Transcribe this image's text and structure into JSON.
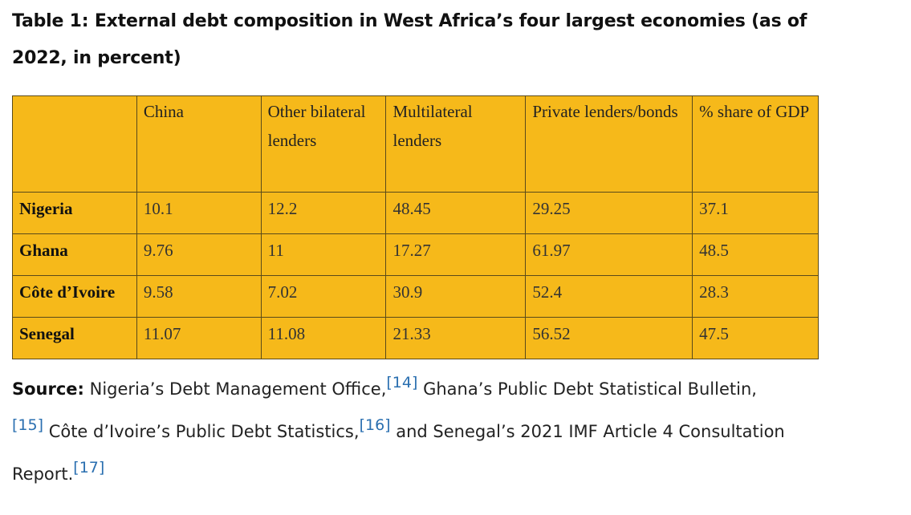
{
  "title": "Table 1: External debt composition in West Africa’s four largest economies (as of 2022, in percent)",
  "table": {
    "headers": [
      "",
      "China",
      "Other bilateral lenders",
      "Multilateral lenders",
      "Private lenders/bonds",
      "% share of GDP"
    ],
    "rows": [
      {
        "country": "Nigeria",
        "values": [
          "10.1",
          "12.2",
          "48.45",
          "29.25",
          "37.1"
        ]
      },
      {
        "country": "Ghana",
        "values": [
          "9.76",
          "11",
          "17.27",
          "61.97",
          "48.5"
        ]
      },
      {
        "country": "Côte d’Ivoire",
        "values": [
          "9.58",
          "7.02",
          "30.9",
          "52.4",
          "28.3"
        ]
      },
      {
        "country": "Senegal",
        "values": [
          "11.07",
          "11.08",
          "21.33",
          "56.52",
          "47.5"
        ]
      }
    ]
  },
  "source": {
    "label": "Source:",
    "part1": " Nigeria’s Debt Management Office,",
    "ref1": "[14]",
    "part2": " Ghana’s Public Debt Statistical Bulletin,",
    "ref2": "[15]",
    "part3": " Côte d’Ivoire’s Public Debt Statistics,",
    "ref3": "[16]",
    "part4": " and Senegal’s 2021 IMF Article 4 Consultation Report.",
    "ref4": "[17]"
  },
  "colors": {
    "table_background": "#f6b91a",
    "reference_link": "#2a6fb0"
  }
}
